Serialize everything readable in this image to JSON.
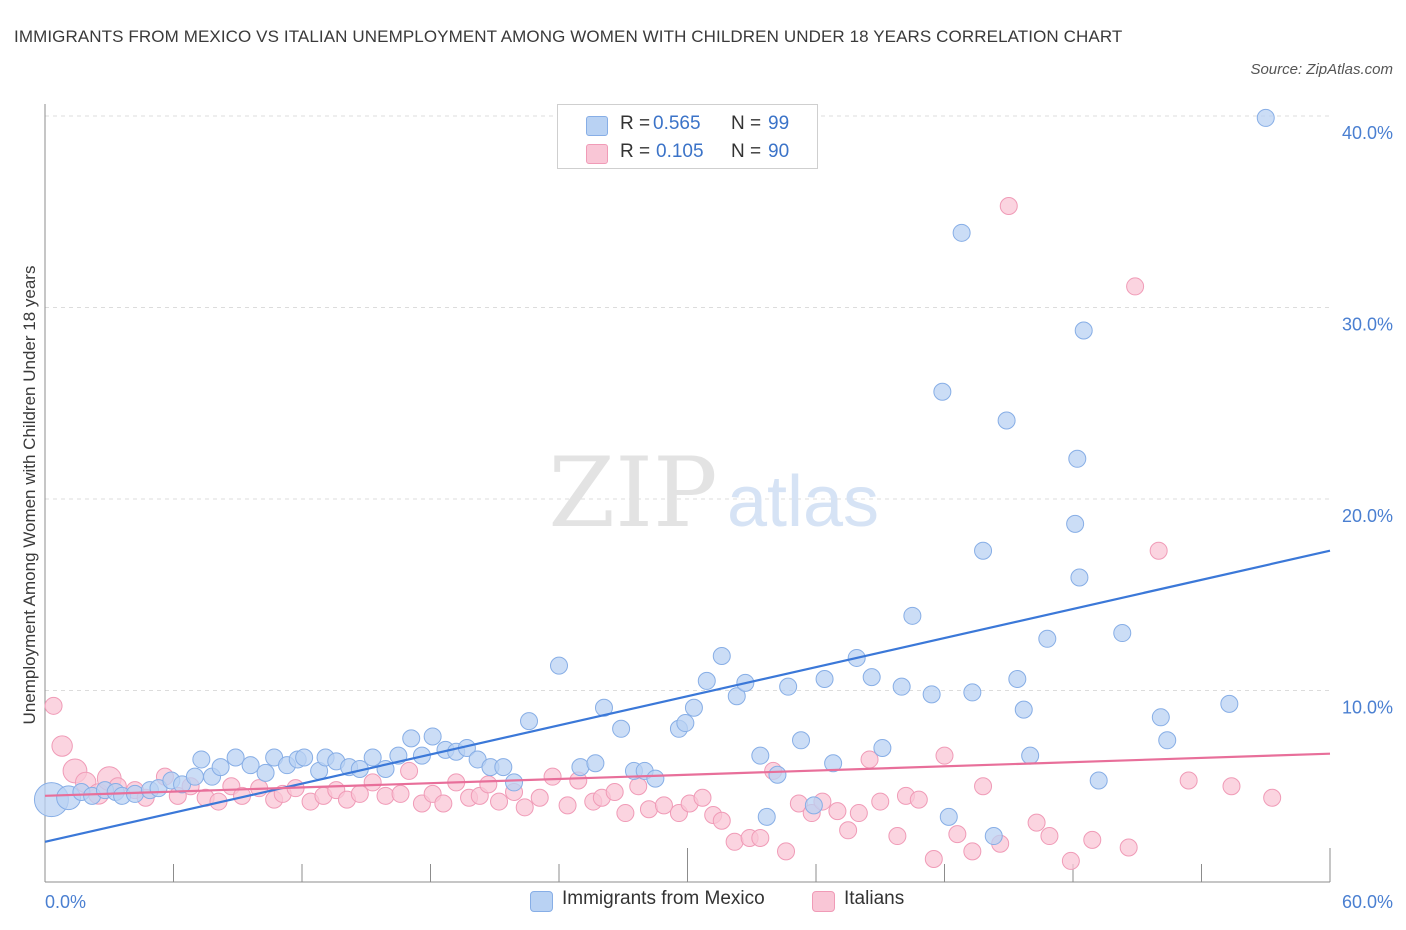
{
  "title": "IMMIGRANTS FROM MEXICO VS ITALIAN UNEMPLOYMENT AMONG WOMEN WITH CHILDREN UNDER 18 YEARS CORRELATION CHART",
  "source": "Source: ZipAtlas.com",
  "watermark": {
    "zip": "ZIP",
    "atlas": "atlas"
  },
  "legend": {
    "r_label": "R =",
    "n_label": "N =",
    "rows": [
      {
        "r": "0.565",
        "n": "99"
      },
      {
        "r": "0.105",
        "n": "90"
      }
    ]
  },
  "colors": {
    "blue_fill": "#b9d2f3",
    "blue_edge": "#87aee6",
    "blue_line": "#3b78d8",
    "pink_fill": "#f9c6d6",
    "pink_edge": "#f09bb7",
    "pink_line": "#e86f9a",
    "tick_text": "#4a7fd1",
    "grid": "#dcdcdc"
  },
  "chart_data": {
    "type": "scatter",
    "title": "IMMIGRANTS FROM MEXICO VS ITALIAN UNEMPLOYMENT AMONG WOMEN WITH CHILDREN UNDER 18 YEARS CORRELATION CHART",
    "xlabel": "",
    "ylabel": "Unemployment Among Women with Children Under 18 years",
    "xlim": [
      0,
      60
    ],
    "ylim": [
      0,
      40
    ],
    "x_tick_labels": [
      "0.0%",
      "60.0%"
    ],
    "y_ticks": [
      10,
      20,
      30,
      40
    ],
    "y_tick_labels": [
      "10.0%",
      "20.0%",
      "30.0%",
      "40.0%"
    ],
    "grid": true,
    "legend_position": "top-center",
    "series": [
      {
        "name": "Immigrants from Mexico",
        "color": "#b9d2f3",
        "trend": {
          "x": [
            0,
            60
          ],
          "y": [
            2.1,
            17.3
          ]
        },
        "points": [
          [
            0.3,
            4.3,
            2.0
          ],
          [
            1.1,
            4.4,
            1.4
          ],
          [
            1.7,
            4.7,
            1.0
          ],
          [
            2.2,
            4.5,
            1.0
          ],
          [
            2.8,
            4.8,
            1.0
          ],
          [
            3.3,
            4.7,
            1.0
          ],
          [
            3.6,
            4.5,
            1.0
          ],
          [
            4.2,
            4.6,
            1.0
          ],
          [
            4.9,
            4.8,
            1.0
          ],
          [
            5.3,
            4.9,
            1.0
          ],
          [
            5.9,
            5.3,
            1.0
          ],
          [
            6.4,
            5.1,
            1.0
          ],
          [
            7.0,
            5.5,
            1.0
          ],
          [
            7.3,
            6.4,
            1.0
          ],
          [
            7.8,
            5.5,
            1.0
          ],
          [
            8.2,
            6.0,
            1.0
          ],
          [
            8.9,
            6.5,
            1.0
          ],
          [
            9.6,
            6.1,
            1.0
          ],
          [
            10.3,
            5.7,
            1.0
          ],
          [
            10.7,
            6.5,
            1.0
          ],
          [
            11.3,
            6.1,
            1.0
          ],
          [
            11.8,
            6.4,
            1.0
          ],
          [
            12.1,
            6.5,
            1.0
          ],
          [
            12.8,
            5.8,
            1.0
          ],
          [
            13.1,
            6.5,
            1.0
          ],
          [
            13.6,
            6.3,
            1.0
          ],
          [
            14.2,
            6.0,
            1.0
          ],
          [
            14.7,
            5.9,
            1.0
          ],
          [
            15.3,
            6.5,
            1.0
          ],
          [
            15.9,
            5.9,
            1.0
          ],
          [
            16.5,
            6.6,
            1.0
          ],
          [
            17.1,
            7.5,
            1.0
          ],
          [
            17.6,
            6.6,
            1.0
          ],
          [
            18.1,
            7.6,
            1.0
          ],
          [
            18.7,
            6.9,
            1.0
          ],
          [
            19.2,
            6.8,
            1.0
          ],
          [
            19.7,
            7.0,
            1.0
          ],
          [
            20.2,
            6.4,
            1.0
          ],
          [
            20.8,
            6.0,
            1.0
          ],
          [
            21.4,
            6.0,
            1.0
          ],
          [
            21.9,
            5.2,
            1.0
          ],
          [
            22.6,
            8.4,
            1.0
          ],
          [
            24.0,
            11.3,
            1.0
          ],
          [
            25.0,
            6.0,
            1.0
          ],
          [
            25.7,
            6.2,
            1.0
          ],
          [
            26.1,
            9.1,
            1.0
          ],
          [
            26.9,
            8.0,
            1.0
          ],
          [
            27.5,
            5.8,
            1.0
          ],
          [
            28.0,
            5.8,
            1.0
          ],
          [
            28.5,
            5.4,
            1.0
          ],
          [
            29.6,
            8.0,
            1.0
          ],
          [
            29.9,
            8.3,
            1.0
          ],
          [
            30.3,
            9.1,
            1.0
          ],
          [
            30.9,
            10.5,
            1.0
          ],
          [
            31.6,
            11.8,
            1.0
          ],
          [
            32.3,
            9.7,
            1.0
          ],
          [
            32.7,
            10.4,
            1.0
          ],
          [
            33.4,
            6.6,
            1.0
          ],
          [
            33.7,
            3.4,
            1.0
          ],
          [
            34.2,
            5.6,
            1.0
          ],
          [
            34.7,
            10.2,
            1.0
          ],
          [
            35.3,
            7.4,
            1.0
          ],
          [
            35.9,
            4.0,
            1.0
          ],
          [
            36.4,
            10.6,
            1.0
          ],
          [
            36.8,
            6.2,
            1.0
          ],
          [
            37.9,
            11.7,
            1.0
          ],
          [
            38.6,
            10.7,
            1.0
          ],
          [
            39.1,
            7.0,
            1.0
          ],
          [
            40.0,
            10.2,
            1.0
          ],
          [
            40.5,
            13.9,
            1.0
          ],
          [
            41.4,
            9.8,
            1.0
          ],
          [
            41.9,
            25.6,
            1.0
          ],
          [
            42.2,
            3.4,
            1.0
          ],
          [
            42.8,
            33.9,
            1.0
          ],
          [
            43.3,
            9.9,
            1.0
          ],
          [
            43.8,
            17.3,
            1.0
          ],
          [
            44.3,
            2.4,
            1.0
          ],
          [
            44.9,
            24.1,
            1.0
          ],
          [
            45.4,
            10.6,
            1.0
          ],
          [
            45.7,
            9.0,
            1.0
          ],
          [
            46.0,
            6.6,
            1.0
          ],
          [
            46.8,
            12.7,
            1.0
          ],
          [
            48.1,
            18.7,
            1.0
          ],
          [
            48.2,
            22.1,
            1.0
          ],
          [
            48.3,
            15.9,
            1.0
          ],
          [
            48.5,
            28.8,
            1.0
          ],
          [
            49.2,
            5.3,
            1.0
          ],
          [
            50.3,
            13.0,
            1.0
          ],
          [
            52.1,
            8.6,
            1.0
          ],
          [
            52.4,
            7.4,
            1.0
          ],
          [
            55.3,
            9.3,
            1.0
          ],
          [
            57.0,
            39.9,
            1.0
          ]
        ]
      },
      {
        "name": "Italians",
        "color": "#f9c6d6",
        "trend": {
          "x": [
            0,
            60
          ],
          "y": [
            4.5,
            6.7
          ]
        },
        "points": [
          [
            0.4,
            9.2,
            1.0
          ],
          [
            0.8,
            7.1,
            1.2
          ],
          [
            1.4,
            5.8,
            1.4
          ],
          [
            1.9,
            5.2,
            1.2
          ],
          [
            2.5,
            4.6,
            1.2
          ],
          [
            3.0,
            5.4,
            1.4
          ],
          [
            3.4,
            5.0,
            1.0
          ],
          [
            4.2,
            4.8,
            1.0
          ],
          [
            4.7,
            4.4,
            1.0
          ],
          [
            5.6,
            5.5,
            1.0
          ],
          [
            6.2,
            4.5,
            1.0
          ],
          [
            6.8,
            5.0,
            1.0
          ],
          [
            7.5,
            4.4,
            1.0
          ],
          [
            8.1,
            4.2,
            1.0
          ],
          [
            8.7,
            5.0,
            1.0
          ],
          [
            9.2,
            4.5,
            1.0
          ],
          [
            10.0,
            4.9,
            1.0
          ],
          [
            10.7,
            4.3,
            1.0
          ],
          [
            11.1,
            4.6,
            1.0
          ],
          [
            11.7,
            4.9,
            1.0
          ],
          [
            12.4,
            4.2,
            1.0
          ],
          [
            13.0,
            4.5,
            1.0
          ],
          [
            13.6,
            4.8,
            1.0
          ],
          [
            14.1,
            4.3,
            1.0
          ],
          [
            14.7,
            4.6,
            1.0
          ],
          [
            15.3,
            5.2,
            1.0
          ],
          [
            15.9,
            4.5,
            1.0
          ],
          [
            16.6,
            4.6,
            1.0
          ],
          [
            17.0,
            5.8,
            1.0
          ],
          [
            17.6,
            4.1,
            1.0
          ],
          [
            18.1,
            4.6,
            1.0
          ],
          [
            18.6,
            4.1,
            1.0
          ],
          [
            19.2,
            5.2,
            1.0
          ],
          [
            19.8,
            4.4,
            1.0
          ],
          [
            20.3,
            4.5,
            1.0
          ],
          [
            20.7,
            5.1,
            1.0
          ],
          [
            21.2,
            4.2,
            1.0
          ],
          [
            21.9,
            4.7,
            1.0
          ],
          [
            22.4,
            3.9,
            1.0
          ],
          [
            23.1,
            4.4,
            1.0
          ],
          [
            23.7,
            5.5,
            1.0
          ],
          [
            24.4,
            4.0,
            1.0
          ],
          [
            24.9,
            5.3,
            1.0
          ],
          [
            25.6,
            4.2,
            1.0
          ],
          [
            26.0,
            4.4,
            1.0
          ],
          [
            26.6,
            4.7,
            1.0
          ],
          [
            27.1,
            3.6,
            1.0
          ],
          [
            27.7,
            5.0,
            1.0
          ],
          [
            28.2,
            3.8,
            1.0
          ],
          [
            28.9,
            4.0,
            1.0
          ],
          [
            29.6,
            3.6,
            1.0
          ],
          [
            30.1,
            4.1,
            1.0
          ],
          [
            30.7,
            4.4,
            1.0
          ],
          [
            31.2,
            3.5,
            1.0
          ],
          [
            31.6,
            3.2,
            1.0
          ],
          [
            32.2,
            2.1,
            1.0
          ],
          [
            32.9,
            2.3,
            1.0
          ],
          [
            33.4,
            2.3,
            1.0
          ],
          [
            34.0,
            5.8,
            1.0
          ],
          [
            34.6,
            1.6,
            1.0
          ],
          [
            35.2,
            4.1,
            1.0
          ],
          [
            35.8,
            3.6,
            1.0
          ],
          [
            36.3,
            4.2,
            1.0
          ],
          [
            37.0,
            3.7,
            1.0
          ],
          [
            37.5,
            2.7,
            1.0
          ],
          [
            38.0,
            3.6,
            1.0
          ],
          [
            38.5,
            6.4,
            1.0
          ],
          [
            39.0,
            4.2,
            1.0
          ],
          [
            39.8,
            2.4,
            1.0
          ],
          [
            40.2,
            4.5,
            1.0
          ],
          [
            40.8,
            4.3,
            1.0
          ],
          [
            41.5,
            1.2,
            1.0
          ],
          [
            42.0,
            6.6,
            1.0
          ],
          [
            42.6,
            2.5,
            1.0
          ],
          [
            43.3,
            1.6,
            1.0
          ],
          [
            43.8,
            5.0,
            1.0
          ],
          [
            44.6,
            2.0,
            1.0
          ],
          [
            45.0,
            35.3,
            1.0
          ],
          [
            46.3,
            3.1,
            1.0
          ],
          [
            46.9,
            2.4,
            1.0
          ],
          [
            47.9,
            1.1,
            1.0
          ],
          [
            48.9,
            2.2,
            1.0
          ],
          [
            50.6,
            1.8,
            1.0
          ],
          [
            50.9,
            31.1,
            1.0
          ],
          [
            52.0,
            17.3,
            1.0
          ],
          [
            53.4,
            5.3,
            1.0
          ],
          [
            55.4,
            5.0,
            1.0
          ],
          [
            57.3,
            4.4,
            1.0
          ]
        ]
      }
    ]
  },
  "bottom_legend": [
    {
      "label": "Immigrants from Mexico"
    },
    {
      "label": "Italians"
    }
  ]
}
